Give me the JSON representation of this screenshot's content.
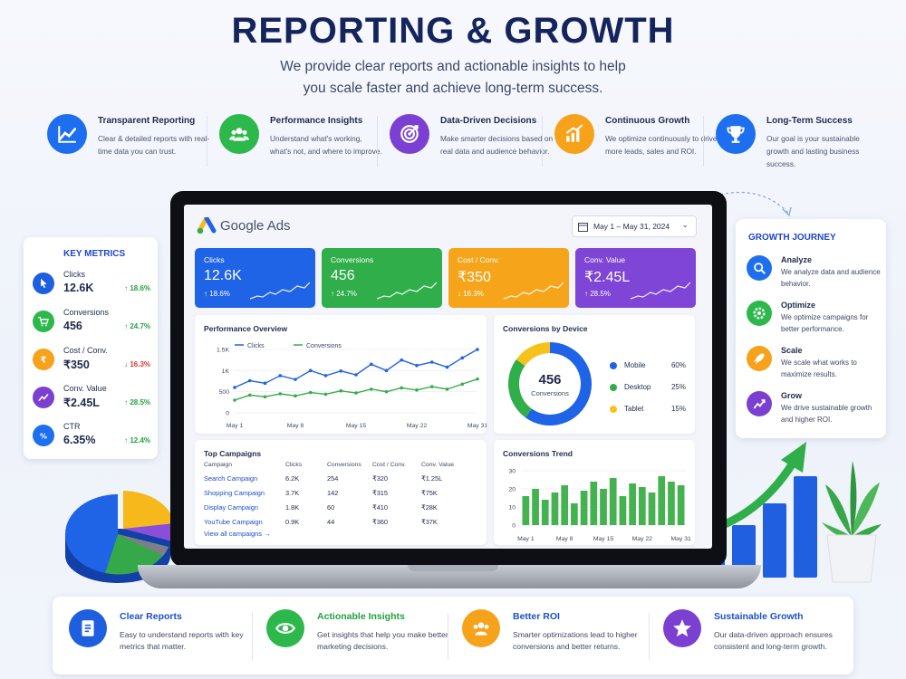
{
  "header": {
    "title": "REPORTING & GROWTH",
    "subtitle_line1": "We provide clear reports and actionable insights to help",
    "subtitle_line2": "you scale faster and achieve long-term success."
  },
  "features": [
    {
      "title": "Transparent Reporting",
      "desc": "Clear & detailed reports with real-time data you can trust.",
      "color": "#1e6ff0",
      "icon": "chart-line-icon"
    },
    {
      "title": "Performance Insights",
      "desc": "Understand what's working, what's not, and where to improve.",
      "color": "#2cb84a",
      "icon": "users-icon"
    },
    {
      "title": "Data-Driven Decisions",
      "desc": "Make smarter decisions based on real data and audience behavior.",
      "color": "#7b3fd1",
      "icon": "target-icon"
    },
    {
      "title": "Continuous Growth",
      "desc": "We optimize continuously to drive more leads, sales and ROI.",
      "color": "#f7a21b",
      "icon": "bar-growth-icon"
    },
    {
      "title": "Long-Term Success",
      "desc": "Our goal is your sustainable growth and lasting business success.",
      "color": "#1e6ff0",
      "icon": "trophy-icon"
    }
  ],
  "key_metrics": {
    "title": "KEY METRICS",
    "items": [
      {
        "label": "Clicks",
        "value": "12.6K",
        "change": "↑ 18.6%",
        "trend": "up",
        "color": "#1e5fe0",
        "icon": "cursor-icon"
      },
      {
        "label": "Conversions",
        "value": "456",
        "change": "↑ 24.7%",
        "trend": "up",
        "color": "#2cb84a",
        "icon": "cart-icon"
      },
      {
        "label": "Cost / Conv.",
        "value": "₹350",
        "change": "↓ 16.3%",
        "trend": "down",
        "color": "#f7a21b",
        "icon": "rupee-icon"
      },
      {
        "label": "Conv. Value",
        "value": "₹2.45L",
        "change": "↑ 28.5%",
        "trend": "up",
        "color": "#7b3fd1",
        "icon": "chart-icon"
      },
      {
        "label": "CTR",
        "value": "6.35%",
        "change": "↑ 12.4%",
        "trend": "up",
        "color": "#1e6ff0",
        "icon": "percent-icon"
      }
    ]
  },
  "growth_journey": {
    "title": "GROWTH JOURNEY",
    "steps": [
      {
        "title": "Analyze",
        "desc": "We analyze data and audience behavior.",
        "color": "#1e6ff0",
        "icon": "search-icon"
      },
      {
        "title": "Optimize",
        "desc": "We optimize campaigns for better performance.",
        "color": "#2cb84a",
        "icon": "gear-icon"
      },
      {
        "title": "Scale",
        "desc": "We scale what works to maximize results.",
        "color": "#f7a21b",
        "icon": "rocket-icon"
      },
      {
        "title": "Grow",
        "desc": "We drive sustainable growth and higher ROI.",
        "color": "#7b3fd1",
        "icon": "growth-chart-icon"
      }
    ]
  },
  "dashboard": {
    "brand": "Google Ads",
    "date_range": "May 1 – May 31, 2024",
    "metric_cards": [
      {
        "label": "Clicks",
        "value": "12.6K",
        "change": "↑ 18.6%",
        "color": "#1f63e6"
      },
      {
        "label": "Conversions",
        "value": "456",
        "change": "↑ 24.7%",
        "color": "#2fae4a"
      },
      {
        "label": "Cost / Conv.",
        "value": "₹350",
        "change": "↓ 16.3%",
        "color": "#f6a51a"
      },
      {
        "label": "Conv. Value",
        "value": "₹2.45L",
        "change": "↑ 28.5%",
        "color": "#7e45d6"
      }
    ],
    "performance": {
      "title": "Performance Overview",
      "legend": [
        "Clicks",
        "Conversions"
      ],
      "y_ticks": [
        "1.5K",
        "1K",
        "500",
        "0"
      ],
      "x_ticks": [
        "May 1",
        "May 8",
        "May 15",
        "May 22",
        "May 31"
      ]
    },
    "device": {
      "title": "Conversions by Device",
      "center_value": "456",
      "center_label": "Conversions",
      "items": [
        {
          "label": "Mobile",
          "pct": "60%",
          "value": 60,
          "color": "#1f63e6"
        },
        {
          "label": "Desktop",
          "pct": "25%",
          "value": 25,
          "color": "#2fae4a"
        },
        {
          "label": "Tablet",
          "pct": "15%",
          "value": 15,
          "color": "#f6c21a"
        }
      ]
    },
    "campaigns": {
      "title": "Top Campaigns",
      "headers": [
        "Campaign",
        "Clicks",
        "Conversions",
        "Cost / Conv.",
        "Conv. Value"
      ],
      "rows": [
        [
          "Search Campaign",
          "6.2K",
          "254",
          "₹320",
          "₹1.25L"
        ],
        [
          "Shopping Campaign",
          "3.7K",
          "142",
          "₹315",
          "₹75K"
        ],
        [
          "Display Campaign",
          "1.8K",
          "60",
          "₹410",
          "₹28K"
        ],
        [
          "YouTube Campaign",
          "0.9K",
          "44",
          "₹360",
          "₹37K"
        ]
      ],
      "view_all": "View all campaigns →"
    },
    "trend": {
      "title": "Conversions Trend",
      "y_ticks": [
        "30",
        "20",
        "10",
        "0"
      ],
      "x_ticks": [
        "May 1",
        "May 8",
        "May 15",
        "May 22",
        "May 31"
      ]
    }
  },
  "benefits": [
    {
      "title": "Clear Reports",
      "desc": "Easy to understand reports with key metrics that matter.",
      "color": "#1e5fe0",
      "title_color": "#1e4fc8",
      "icon": "document-icon"
    },
    {
      "title": "Actionable Insights",
      "desc": "Get insights that help you make better marketing decisions.",
      "color": "#2cb84a",
      "title_color": "#23a03f",
      "icon": "eye-icon"
    },
    {
      "title": "Better ROI",
      "desc": "Smarter optimizations lead to higher conversions and better returns.",
      "color": "#f7a21b",
      "title_color": "#1e4fc8",
      "icon": "team-icon"
    },
    {
      "title": "Sustainable Growth",
      "desc": "Our data-driven approach ensures consistent and long-term growth.",
      "color": "#7b3fd1",
      "title_color": "#1e4fc8",
      "icon": "star-icon"
    }
  ],
  "chart_data": [
    {
      "type": "line",
      "title": "Performance Overview",
      "x": [
        "May 1",
        "May 3",
        "May 5",
        "May 7",
        "May 8",
        "May 10",
        "May 12",
        "May 14",
        "May 15",
        "May 17",
        "May 19",
        "May 21",
        "May 22",
        "May 24",
        "May 26",
        "May 28",
        "May 31"
      ],
      "series": [
        {
          "name": "Clicks",
          "values": [
            600,
            760,
            700,
            880,
            790,
            1000,
            880,
            990,
            900,
            1150,
            1000,
            1250,
            1120,
            1200,
            1080,
            1300,
            1500
          ]
        },
        {
          "name": "Conversions",
          "values": [
            300,
            420,
            380,
            450,
            400,
            480,
            440,
            520,
            470,
            560,
            500,
            590,
            540,
            620,
            560,
            680,
            800
          ]
        }
      ],
      "ylim": [
        0,
        1500
      ],
      "yticks": [
        "0",
        "500",
        "1K",
        "1.5K"
      ],
      "legend": "top"
    },
    {
      "type": "pie",
      "title": "Conversions by Device",
      "categories": [
        "Mobile",
        "Desktop",
        "Tablet"
      ],
      "values": [
        60,
        25,
        15
      ]
    },
    {
      "type": "bar",
      "title": "Conversions Trend",
      "categories": [
        "May 1",
        "May 3",
        "May 5",
        "May 7",
        "May 8",
        "May 10",
        "May 12",
        "May 14",
        "May 15",
        "May 17",
        "May 19",
        "May 21",
        "May 22",
        "May 24",
        "May 26",
        "May 28",
        "May 31"
      ],
      "values": [
        16,
        20,
        14,
        18,
        22,
        12,
        19,
        24,
        20,
        26,
        16,
        23,
        21,
        18,
        27,
        24,
        22
      ],
      "ylim": [
        0,
        30
      ],
      "grid": true
    }
  ]
}
